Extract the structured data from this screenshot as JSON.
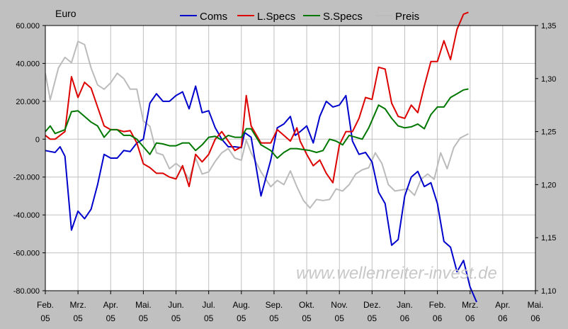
{
  "chart_data": {
    "type": "line",
    "unit_label": "Euro",
    "watermark": "www.wellenreiter-invest.de",
    "x_labels": [
      {
        "month": "Feb.",
        "year": "05"
      },
      {
        "month": "Mrz.",
        "year": "05"
      },
      {
        "month": "Apr.",
        "year": "05"
      },
      {
        "month": "Mai.",
        "year": "05"
      },
      {
        "month": "Jun.",
        "year": "05"
      },
      {
        "month": "Jul.",
        "year": "05"
      },
      {
        "month": "Aug.",
        "year": "05"
      },
      {
        "month": "Sep.",
        "year": "05"
      },
      {
        "month": "Okt.",
        "year": "05"
      },
      {
        "month": "Nov.",
        "year": "05"
      },
      {
        "month": "Dez.",
        "year": "05"
      },
      {
        "month": "Jan.",
        "year": "06"
      },
      {
        "month": "Feb.",
        "year": "06"
      },
      {
        "month": "Mrz.",
        "year": "06"
      },
      {
        "month": "Apr.",
        "year": "06"
      },
      {
        "month": "Mai.",
        "year": "06"
      }
    ],
    "x_range": [
      0,
      15
    ],
    "y_left": {
      "range": [
        -80000,
        60000
      ],
      "ticks": [
        60000,
        40000,
        20000,
        0,
        -20000,
        -40000,
        -60000,
        -80000
      ],
      "tick_labels": [
        "60.000",
        "40.000",
        "20.000",
        "0",
        "-20.000",
        "-40.000",
        "-60.000",
        "-80.000"
      ]
    },
    "y_right": {
      "range": [
        1.1,
        1.35
      ],
      "ticks": [
        1.35,
        1.3,
        1.25,
        1.2,
        1.15,
        1.1
      ],
      "tick_labels": [
        "1,35",
        "1,30",
        "1,25",
        "1,20",
        "1,15",
        "1,10"
      ]
    },
    "grid": true,
    "legend_position": "top-center",
    "series": [
      {
        "name": "Coms",
        "color": "#0000cc",
        "axis": "left",
        "points": [
          [
            0,
            -6000
          ],
          [
            0.15,
            -6500
          ],
          [
            0.3,
            -7000
          ],
          [
            0.45,
            -4000
          ],
          [
            0.6,
            -9000
          ],
          [
            0.8,
            -48000
          ],
          [
            1.0,
            -38000
          ],
          [
            1.2,
            -42000
          ],
          [
            1.4,
            -37000
          ],
          [
            1.6,
            -24000
          ],
          [
            1.8,
            -8000
          ],
          [
            2.0,
            -10000
          ],
          [
            2.2,
            -10000
          ],
          [
            2.4,
            -6000
          ],
          [
            2.6,
            -6500
          ],
          [
            2.8,
            -2000
          ],
          [
            3.0,
            0
          ],
          [
            3.2,
            19000
          ],
          [
            3.4,
            24000
          ],
          [
            3.6,
            20000
          ],
          [
            3.8,
            20000
          ],
          [
            4.0,
            23000
          ],
          [
            4.2,
            25000
          ],
          [
            4.4,
            16000
          ],
          [
            4.6,
            28000
          ],
          [
            4.8,
            14000
          ],
          [
            5.0,
            15000
          ],
          [
            5.2,
            6000
          ],
          [
            5.4,
            0
          ],
          [
            5.6,
            -4000
          ],
          [
            5.8,
            -4000
          ],
          [
            6.0,
            -4500
          ],
          [
            6.1,
            3500
          ],
          [
            6.3,
            1000
          ],
          [
            6.6,
            -30000
          ],
          [
            6.9,
            -11000
          ],
          [
            7.1,
            6000
          ],
          [
            7.3,
            8000
          ],
          [
            7.5,
            12000
          ],
          [
            7.65,
            2000
          ],
          [
            7.8,
            4000
          ],
          [
            8.0,
            7000
          ],
          [
            8.2,
            -2000
          ],
          [
            8.4,
            12000
          ],
          [
            8.6,
            20000
          ],
          [
            8.8,
            17000
          ],
          [
            9.0,
            18000
          ],
          [
            9.2,
            23000
          ],
          [
            9.4,
            -1000
          ],
          [
            9.6,
            -8000
          ],
          [
            9.8,
            -7000
          ],
          [
            10.0,
            -12000
          ],
          [
            10.2,
            -28000
          ],
          [
            10.4,
            -34000
          ],
          [
            10.6,
            -56000
          ],
          [
            10.8,
            -53000
          ],
          [
            11.0,
            -30000
          ],
          [
            11.2,
            -20000
          ],
          [
            11.4,
            -17000
          ],
          [
            11.6,
            -25000
          ],
          [
            11.8,
            -23000
          ],
          [
            12.0,
            -34000
          ],
          [
            12.2,
            -54000
          ],
          [
            12.4,
            -57000
          ],
          [
            12.6,
            -70000
          ],
          [
            12.8,
            -64000
          ],
          [
            13.0,
            -78000
          ],
          [
            13.2,
            -86000
          ]
        ]
      },
      {
        "name": "L.Specs",
        "color": "#dd0000",
        "axis": "left",
        "points": [
          [
            0,
            2000
          ],
          [
            0.15,
            0
          ],
          [
            0.3,
            0
          ],
          [
            0.6,
            4000
          ],
          [
            0.8,
            33000
          ],
          [
            1.0,
            22000
          ],
          [
            1.2,
            30000
          ],
          [
            1.4,
            27000
          ],
          [
            1.6,
            17000
          ],
          [
            1.8,
            7000
          ],
          [
            2.0,
            5000
          ],
          [
            2.2,
            5000
          ],
          [
            2.4,
            4000
          ],
          [
            2.6,
            4500
          ],
          [
            2.8,
            -2000
          ],
          [
            3.0,
            -13000
          ],
          [
            3.2,
            -15000
          ],
          [
            3.4,
            -18000
          ],
          [
            3.6,
            -18000
          ],
          [
            3.8,
            -20000
          ],
          [
            4.0,
            -21000
          ],
          [
            4.2,
            -14000
          ],
          [
            4.4,
            -25000
          ],
          [
            4.6,
            -8000
          ],
          [
            4.8,
            -12000
          ],
          [
            5.0,
            -8000
          ],
          [
            5.2,
            0
          ],
          [
            5.4,
            4000
          ],
          [
            5.6,
            -1000
          ],
          [
            5.8,
            -6000
          ],
          [
            6.0,
            -4000
          ],
          [
            6.15,
            23000
          ],
          [
            6.3,
            7000
          ],
          [
            6.6,
            -2000
          ],
          [
            6.9,
            -2000
          ],
          [
            7.1,
            5000
          ],
          [
            7.3,
            2000
          ],
          [
            7.5,
            -1000
          ],
          [
            7.7,
            6000
          ],
          [
            7.8,
            -1000
          ],
          [
            8.0,
            -8000
          ],
          [
            8.2,
            -14000
          ],
          [
            8.4,
            -11000
          ],
          [
            8.6,
            -18000
          ],
          [
            8.8,
            -23000
          ],
          [
            9.0,
            -3000
          ],
          [
            9.2,
            4000
          ],
          [
            9.4,
            4000
          ],
          [
            9.6,
            11000
          ],
          [
            9.8,
            22000
          ],
          [
            10.0,
            21000
          ],
          [
            10.2,
            38000
          ],
          [
            10.4,
            37000
          ],
          [
            10.6,
            19000
          ],
          [
            10.8,
            12000
          ],
          [
            11.0,
            11000
          ],
          [
            11.2,
            18000
          ],
          [
            11.4,
            14000
          ],
          [
            11.6,
            28000
          ],
          [
            11.8,
            41000
          ],
          [
            12.0,
            41000
          ],
          [
            12.2,
            52000
          ],
          [
            12.4,
            42000
          ],
          [
            12.6,
            58000
          ],
          [
            12.8,
            66000
          ],
          [
            12.95,
            67000
          ]
        ]
      },
      {
        "name": "S.Specs",
        "color": "#007700",
        "axis": "left",
        "points": [
          [
            0,
            4000
          ],
          [
            0.15,
            7000
          ],
          [
            0.3,
            3000
          ],
          [
            0.6,
            5000
          ],
          [
            0.8,
            14500
          ],
          [
            1.0,
            15000
          ],
          [
            1.2,
            12000
          ],
          [
            1.4,
            9000
          ],
          [
            1.6,
            7000
          ],
          [
            1.8,
            1000
          ],
          [
            2.0,
            5000
          ],
          [
            2.2,
            5000
          ],
          [
            2.4,
            2000
          ],
          [
            2.6,
            2000
          ],
          [
            2.8,
            0
          ],
          [
            3.0,
            -4000
          ],
          [
            3.2,
            -8000
          ],
          [
            3.4,
            -2000
          ],
          [
            3.6,
            -2500
          ],
          [
            3.8,
            -3500
          ],
          [
            4.0,
            -3500
          ],
          [
            4.2,
            -2000
          ],
          [
            4.4,
            -2000
          ],
          [
            4.6,
            -6000
          ],
          [
            4.8,
            -3000
          ],
          [
            5.0,
            1000
          ],
          [
            5.2,
            1500
          ],
          [
            5.4,
            -500
          ],
          [
            5.6,
            2000
          ],
          [
            5.8,
            1000
          ],
          [
            6.0,
            1000
          ],
          [
            6.15,
            5500
          ],
          [
            6.3,
            5500
          ],
          [
            6.6,
            -3000
          ],
          [
            6.9,
            -6000
          ],
          [
            7.1,
            -10000
          ],
          [
            7.3,
            -7000
          ],
          [
            7.5,
            -5000
          ],
          [
            7.7,
            -5000
          ],
          [
            7.9,
            -5500
          ],
          [
            8.1,
            -6000
          ],
          [
            8.3,
            -7000
          ],
          [
            8.5,
            -6000
          ],
          [
            8.7,
            0
          ],
          [
            8.9,
            -1000
          ],
          [
            9.1,
            -3000
          ],
          [
            9.3,
            2000
          ],
          [
            9.5,
            1000
          ],
          [
            9.7,
            0
          ],
          [
            9.9,
            6000
          ],
          [
            10.2,
            18000
          ],
          [
            10.4,
            16000
          ],
          [
            10.6,
            11000
          ],
          [
            10.8,
            7000
          ],
          [
            11.0,
            6000
          ],
          [
            11.2,
            6500
          ],
          [
            11.4,
            8000
          ],
          [
            11.6,
            5500
          ],
          [
            11.8,
            13000
          ],
          [
            12.0,
            17000
          ],
          [
            12.2,
            17000
          ],
          [
            12.4,
            22000
          ],
          [
            12.6,
            24000
          ],
          [
            12.8,
            26000
          ],
          [
            12.95,
            26500
          ]
        ]
      },
      {
        "name": "Preis",
        "color": "#bbbbbb",
        "axis": "right",
        "points": [
          [
            0,
            1.305
          ],
          [
            0.15,
            1.28
          ],
          [
            0.4,
            1.31
          ],
          [
            0.6,
            1.32
          ],
          [
            0.8,
            1.315
          ],
          [
            1.0,
            1.335
          ],
          [
            1.2,
            1.332
          ],
          [
            1.4,
            1.31
          ],
          [
            1.6,
            1.294
          ],
          [
            1.8,
            1.29
          ],
          [
            2.0,
            1.296
          ],
          [
            2.2,
            1.305
          ],
          [
            2.4,
            1.3
          ],
          [
            2.6,
            1.29
          ],
          [
            2.8,
            1.29
          ],
          [
            3.0,
            1.26
          ],
          [
            3.2,
            1.255
          ],
          [
            3.4,
            1.23
          ],
          [
            3.6,
            1.228
          ],
          [
            3.8,
            1.215
          ],
          [
            4.0,
            1.22
          ],
          [
            4.2,
            1.215
          ],
          [
            4.4,
            1.205
          ],
          [
            4.6,
            1.225
          ],
          [
            4.8,
            1.21
          ],
          [
            5.0,
            1.212
          ],
          [
            5.2,
            1.222
          ],
          [
            5.4,
            1.23
          ],
          [
            5.6,
            1.234
          ],
          [
            5.8,
            1.225
          ],
          [
            6.0,
            1.223
          ],
          [
            6.15,
            1.242
          ],
          [
            6.3,
            1.23
          ],
          [
            6.6,
            1.212
          ],
          [
            6.9,
            1.198
          ],
          [
            7.1,
            1.204
          ],
          [
            7.3,
            1.2
          ],
          [
            7.5,
            1.213
          ],
          [
            7.7,
            1.198
          ],
          [
            7.9,
            1.185
          ],
          [
            8.1,
            1.178
          ],
          [
            8.3,
            1.186
          ],
          [
            8.5,
            1.185
          ],
          [
            8.7,
            1.186
          ],
          [
            8.9,
            1.196
          ],
          [
            9.1,
            1.194
          ],
          [
            9.3,
            1.2
          ],
          [
            9.5,
            1.21
          ],
          [
            9.7,
            1.214
          ],
          [
            9.9,
            1.216
          ],
          [
            10.1,
            1.23
          ],
          [
            10.3,
            1.22
          ],
          [
            10.5,
            1.2
          ],
          [
            10.7,
            1.194
          ],
          [
            10.9,
            1.195
          ],
          [
            11.1,
            1.196
          ],
          [
            11.3,
            1.19
          ],
          [
            11.5,
            1.205
          ],
          [
            11.7,
            1.21
          ],
          [
            11.9,
            1.205
          ],
          [
            12.1,
            1.23
          ],
          [
            12.3,
            1.215
          ],
          [
            12.5,
            1.235
          ],
          [
            12.7,
            1.244
          ],
          [
            12.95,
            1.248
          ]
        ]
      }
    ]
  }
}
